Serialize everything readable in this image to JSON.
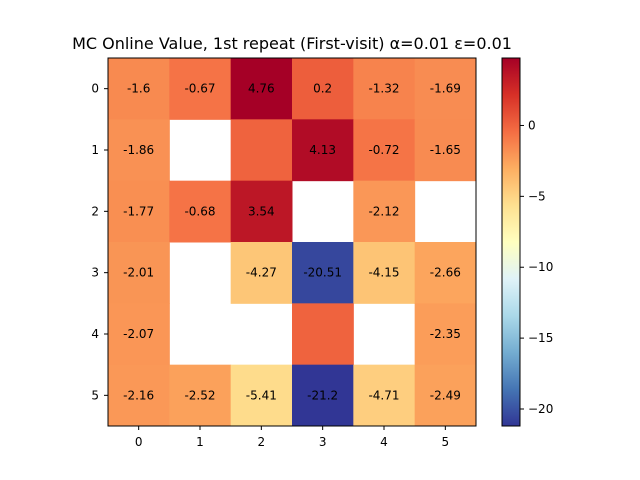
{
  "chart_data": {
    "type": "heatmap",
    "title": "MC Online Value, 1st repeat (First-visit) α=0.01 ε=0.01",
    "x_ticks": [
      "0",
      "1",
      "2",
      "3",
      "4",
      "5"
    ],
    "y_ticks": [
      "0",
      "1",
      "2",
      "3",
      "4",
      "5"
    ],
    "values": [
      [
        -1.6,
        -0.67,
        4.76,
        0.2,
        -1.32,
        -1.69
      ],
      [
        -1.86,
        null,
        0.0,
        4.13,
        -0.72,
        -1.65
      ],
      [
        -1.77,
        -0.68,
        3.54,
        null,
        -2.12,
        null
      ],
      [
        -2.01,
        null,
        -4.27,
        -20.51,
        -4.15,
        -2.66
      ],
      [
        -2.07,
        null,
        null,
        0.0,
        null,
        -2.35
      ],
      [
        -2.16,
        -2.52,
        -5.41,
        -21.2,
        -4.71,
        -2.49
      ]
    ],
    "cell_labels": [
      [
        "-1.6",
        "-0.67",
        "4.76",
        "0.2",
        "-1.32",
        "-1.69"
      ],
      [
        "-1.86",
        "",
        "",
        "4.13",
        "-0.72",
        "-1.65"
      ],
      [
        "-1.77",
        "-0.68",
        "3.54",
        "",
        "-2.12",
        ""
      ],
      [
        "-2.01",
        "",
        "-4.27",
        "-20.51",
        "-4.15",
        "-2.66"
      ],
      [
        "-2.07",
        "",
        "",
        "",
        "",
        "-2.35"
      ],
      [
        "-2.16",
        "-2.52",
        "-5.41",
        "-21.2",
        "-4.71",
        "-2.49"
      ]
    ],
    "colormap": "RdYlBu_r",
    "vmin": -21.2,
    "vmax": 4.76,
    "colorbar_ticks": [
      0,
      -5,
      -10,
      -15,
      -20
    ],
    "colorbar_tick_labels": [
      "0",
      "−5",
      "−10",
      "−15",
      "−20"
    ],
    "grid": false,
    "legend": "colorbar-right"
  }
}
